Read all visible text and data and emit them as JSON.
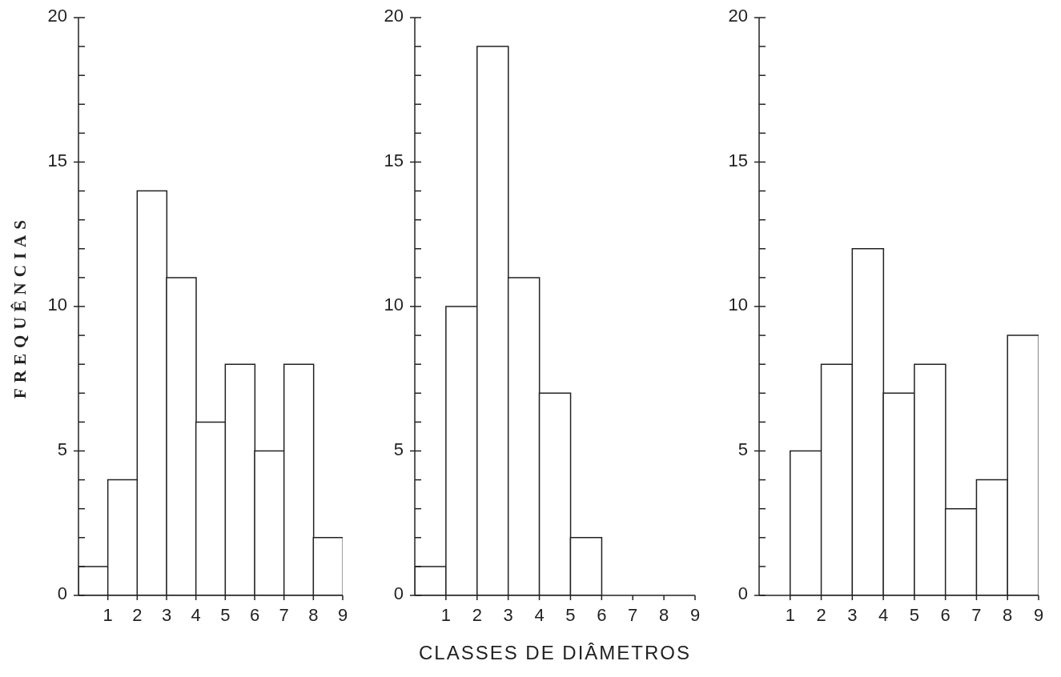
{
  "chart_data": [
    {
      "type": "histogram",
      "ylabel": "FREQUÊNCIAS",
      "bins": [
        0,
        1,
        2,
        3,
        4,
        5,
        6,
        7,
        8,
        9
      ],
      "values": [
        1,
        4,
        14,
        11,
        6,
        8,
        5,
        8,
        2
      ],
      "color": "#ffffff",
      "xlim": [
        0,
        9
      ],
      "xticks": [
        1,
        2,
        3,
        4,
        5,
        6,
        7,
        8,
        9
      ],
      "ylim": [
        0,
        20
      ],
      "yticks": [
        0,
        {
          "value": 1,
          "label": null
        },
        {
          "value": 2,
          "label": null
        },
        {
          "value": 3,
          "label": null
        },
        {
          "value": 4,
          "label": null
        },
        5,
        {
          "value": 6,
          "label": null
        },
        {
          "value": 7,
          "label": null
        },
        {
          "value": 8,
          "label": null
        },
        {
          "value": 9,
          "label": null
        },
        10,
        {
          "value": 11,
          "label": null
        },
        {
          "value": 12,
          "label": null
        },
        {
          "value": 13,
          "label": null
        },
        {
          "value": 14,
          "label": null
        },
        15,
        {
          "value": 16,
          "label": null
        },
        {
          "value": 17,
          "label": null
        },
        {
          "value": 18,
          "label": null
        },
        {
          "value": 19,
          "label": null
        },
        20
      ],
      "grid": false
    },
    {
      "type": "histogram",
      "xlabel": "CLASSES DE DIÂMETROS",
      "bins": [
        0,
        1,
        2,
        3,
        4,
        5,
        6,
        7,
        8,
        9
      ],
      "values": [
        1,
        10,
        19,
        11,
        7,
        2,
        0,
        0,
        0
      ],
      "color": "#ffffff",
      "xlim": [
        0,
        9
      ],
      "xticks": [
        1,
        2,
        3,
        4,
        5,
        6,
        7,
        8,
        9
      ],
      "ylim": [
        0,
        20
      ],
      "yticks": [
        0,
        {
          "value": 1,
          "label": null
        },
        {
          "value": 2,
          "label": null
        },
        {
          "value": 3,
          "label": null
        },
        {
          "value": 4,
          "label": null
        },
        5,
        {
          "value": 6,
          "label": null
        },
        {
          "value": 7,
          "label": null
        },
        {
          "value": 8,
          "label": null
        },
        {
          "value": 9,
          "label": null
        },
        10,
        {
          "value": 11,
          "label": null
        },
        {
          "value": 12,
          "label": null
        },
        {
          "value": 13,
          "label": null
        },
        {
          "value": 14,
          "label": null
        },
        15,
        {
          "value": 16,
          "label": null
        },
        {
          "value": 17,
          "label": null
        },
        {
          "value": 18,
          "label": null
        },
        {
          "value": 19,
          "label": null
        },
        20
      ],
      "grid": false
    },
    {
      "type": "histogram",
      "bins": [
        0,
        1,
        2,
        3,
        4,
        5,
        6,
        7,
        8,
        9
      ],
      "values": [
        0,
        5,
        8,
        12,
        7,
        8,
        3,
        4,
        9
      ],
      "color": "#ffffff",
      "xlim": [
        0,
        9
      ],
      "xticks": [
        1,
        2,
        3,
        4,
        5,
        6,
        7,
        8,
        9
      ],
      "ylim": [
        0,
        20
      ],
      "yticks": [
        0,
        {
          "value": 1,
          "label": null
        },
        {
          "value": 2,
          "label": null
        },
        {
          "value": 3,
          "label": null
        },
        {
          "value": 4,
          "label": null
        },
        5,
        {
          "value": 6,
          "label": null
        },
        {
          "value": 7,
          "label": null
        },
        {
          "value": 8,
          "label": null
        },
        {
          "value": 9,
          "label": null
        },
        10,
        {
          "value": 11,
          "label": null
        },
        {
          "value": 12,
          "label": null
        },
        {
          "value": 13,
          "label": null
        },
        {
          "value": 14,
          "label": null
        },
        15,
        {
          "value": 16,
          "label": null
        },
        {
          "value": 17,
          "label": null
        },
        {
          "value": 18,
          "label": null
        },
        {
          "value": 19,
          "label": null
        },
        20
      ],
      "grid": false
    }
  ]
}
